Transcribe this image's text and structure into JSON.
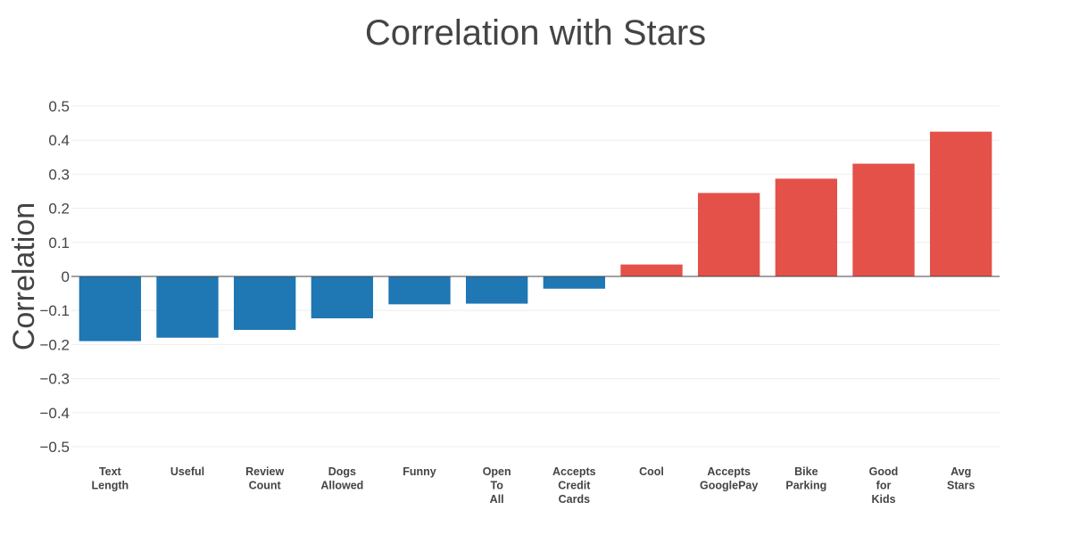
{
  "chart_data": {
    "type": "bar",
    "title": "Correlation with Stars",
    "xlabel": "",
    "ylabel": "Correlation",
    "ylim": [
      -0.5,
      0.5
    ],
    "yticks": [
      0.5,
      0.4,
      0.3,
      0.2,
      0.1,
      0,
      -0.1,
      -0.2,
      -0.3,
      -0.4,
      -0.5
    ],
    "ytick_labels": [
      "0.5",
      "0.4",
      "0.3",
      "0.2",
      "0.1",
      "0",
      "−0.1",
      "−0.2",
      "−0.3",
      "−0.4",
      "−0.5"
    ],
    "grid": true,
    "categories": [
      [
        "Text",
        "Length"
      ],
      [
        "Useful"
      ],
      [
        "Review",
        "Count"
      ],
      [
        "Dogs",
        "Allowed"
      ],
      [
        "Funny"
      ],
      [
        "Open",
        "To",
        "All"
      ],
      [
        "Accepts",
        "Credit",
        "Cards"
      ],
      [
        "Cool"
      ],
      [
        "Accepts",
        "GooglePay"
      ],
      [
        "Bike",
        "Parking"
      ],
      [
        "Good",
        "for",
        "Kids"
      ],
      [
        "Avg",
        "Stars"
      ]
    ],
    "values": [
      -0.19,
      -0.18,
      -0.157,
      -0.123,
      -0.082,
      -0.08,
      -0.036,
      0.035,
      0.245,
      0.287,
      0.331,
      0.425
    ],
    "colors": {
      "negative": "#1f77b4",
      "positive": "#e45149"
    }
  }
}
